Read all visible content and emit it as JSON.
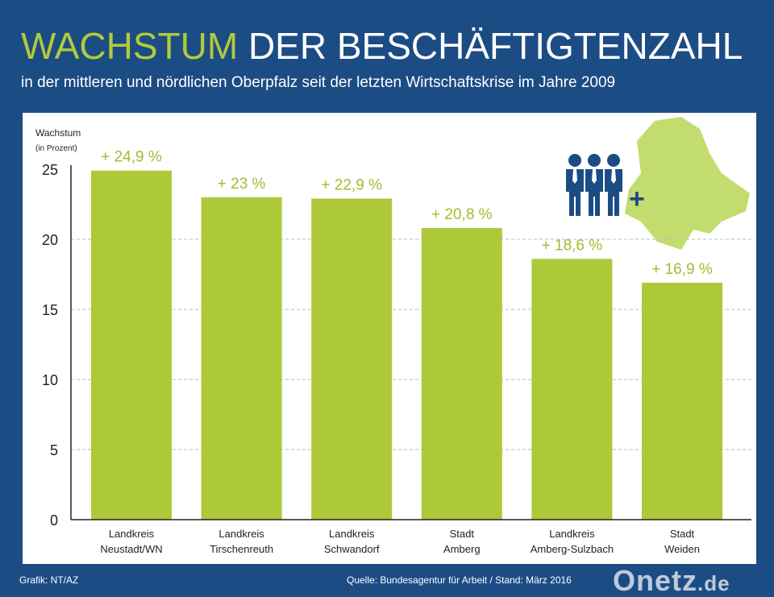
{
  "title": {
    "highlight": "WACHSTUM",
    "rest": "DER BESCHÄFTIGTENZAHL"
  },
  "subtitle": "in der mittleren und nördlichen Oberpfalz seit der letzten Wirtschaftskrise im Jahre 2009",
  "footer": {
    "left": "Grafik: NT/AZ",
    "right": "Quelle: Bundesagentur für Arbeit / Stand: März 2016"
  },
  "watermark": "Onetz.de",
  "colors": {
    "background": "#1c4c84",
    "bar": "#adc93a",
    "label": "#9fbe2f",
    "map": "#c3dc6e",
    "people": "#1c4c84"
  },
  "chart_data": {
    "type": "bar",
    "ylabel": "Wachstum",
    "ylabel_sub": "(in Prozent)",
    "ylim": [
      0,
      25
    ],
    "yticks": [
      0,
      5,
      10,
      15,
      20,
      25
    ],
    "grid": true,
    "categories": [
      [
        "Landkreis",
        "Neustadt/WN"
      ],
      [
        "Landkreis",
        "Tirschenreuth"
      ],
      [
        "Landkreis",
        "Schwandorf"
      ],
      [
        "Stadt",
        "Amberg"
      ],
      [
        "Landkreis",
        "Amberg-Sulzbach"
      ],
      [
        "Stadt",
        "Weiden"
      ]
    ],
    "values": [
      24.9,
      23,
      22.9,
      20.8,
      18.6,
      16.9
    ],
    "data_labels": [
      "+ 24,9 %",
      "+ 23 %",
      "+ 22,9 %",
      "+ 20,8 %",
      "+ 18,6 %",
      "+ 16,9 %"
    ]
  }
}
